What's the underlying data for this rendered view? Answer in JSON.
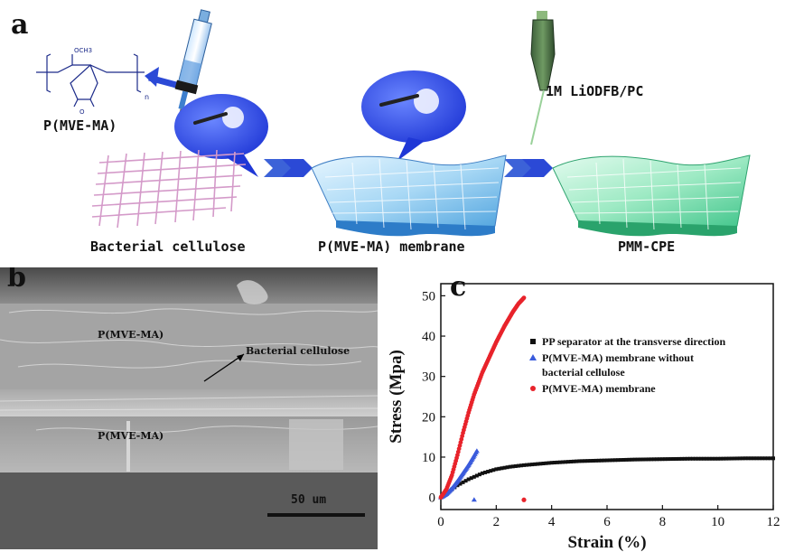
{
  "panel_a": {
    "letter": "a",
    "polymer_label": "P(MVE-MA)",
    "bc_label": "Bacterial cellulose",
    "membrane_label": "P(MVE-MA) membrane",
    "cpe_label": "PMM-CPE",
    "electrolyte_label": "1M LiODFB/PC",
    "structure_och3": "OCH3",
    "structure_n": "n",
    "structure_o": "O"
  },
  "panel_b": {
    "letter": "b",
    "top_layer": "P(MVE-MA)",
    "middle_layer": "Bacterial cellulose",
    "bottom_layer": "P(MVE-MA)",
    "scale_bar": "50 um"
  },
  "panel_c": {
    "letter": "c"
  },
  "colors": {
    "pp": "#111111",
    "blue_series": "#3a5bdc",
    "red_series": "#e8232b",
    "sem_bg": "#8a8a8a"
  },
  "chart_data": {
    "type": "scatter",
    "xlabel": "Strain (%)",
    "ylabel": "Stress (Mpa)",
    "xlim": [
      0,
      12
    ],
    "ylim": [
      -3,
      53
    ],
    "xticks": [
      "0",
      "2",
      "4",
      "6",
      "8",
      "10",
      "12"
    ],
    "yticks": [
      "0",
      "10",
      "20",
      "30",
      "40",
      "50"
    ],
    "legend_position": "right",
    "series": [
      {
        "name": "PP separator at the transverse direction",
        "marker": "square",
        "color": "#111111",
        "x": [
          0,
          0.3,
          0.6,
          1.0,
          1.5,
          2.0,
          2.5,
          3.0,
          4.0,
          5.0,
          6.0,
          7.0,
          8.0,
          9.0,
          10.0,
          11.0,
          12.0
        ],
        "y": [
          0,
          1.5,
          3.0,
          4.5,
          6.0,
          7.0,
          7.6,
          8.0,
          8.6,
          9.0,
          9.2,
          9.4,
          9.5,
          9.6,
          9.6,
          9.7,
          9.7
        ]
      },
      {
        "name": "P(MVE-MA) membrane without\nbacterial cellulose",
        "marker": "triangle",
        "color": "#3a5bdc",
        "x": [
          0,
          0.2,
          0.4,
          0.6,
          0.8,
          1.0,
          1.2,
          1.3
        ],
        "y": [
          0,
          0.8,
          2.2,
          4.0,
          6.0,
          8.0,
          10.3,
          11.5
        ]
      },
      {
        "name": "P(MVE-MA) membrane",
        "marker": "circle",
        "color": "#e8232b",
        "x": [
          0,
          0.2,
          0.4,
          0.6,
          0.8,
          1.0,
          1.2,
          1.5,
          1.8,
          2.0,
          2.3,
          2.6,
          2.8,
          3.0
        ],
        "y": [
          0,
          2.0,
          5.5,
          10.5,
          16.0,
          21.0,
          25.5,
          31.0,
          35.5,
          38.5,
          42.5,
          46.0,
          48.0,
          49.5
        ]
      }
    ]
  }
}
